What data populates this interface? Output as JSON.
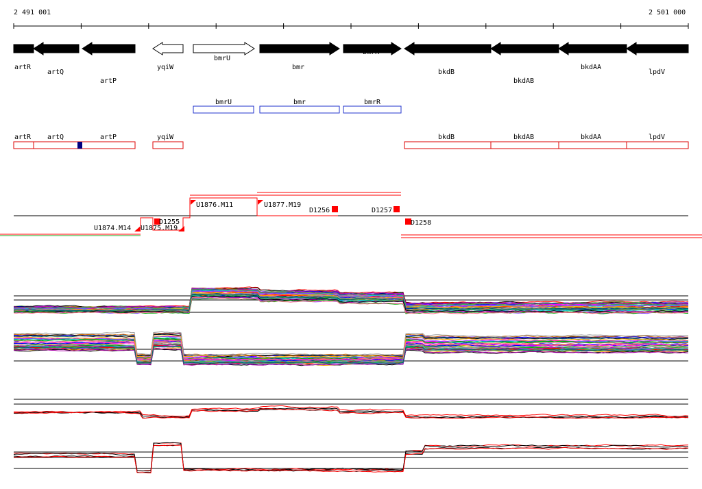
{
  "coordinates": {
    "start": "2 491 001",
    "end": "2 501 000"
  },
  "genes": [
    {
      "name": "artR",
      "strand": "-",
      "filled": true
    },
    {
      "name": "artQ",
      "strand": "-",
      "filled": true
    },
    {
      "name": "artP",
      "strand": "-",
      "filled": true
    },
    {
      "name": "yqiW",
      "strand": "-",
      "filled": false
    },
    {
      "name": "bmrU",
      "strand": "+",
      "filled": false
    },
    {
      "name": "bmr",
      "strand": "+",
      "filled": true
    },
    {
      "name": "bmrR",
      "strand": "+",
      "filled": true
    },
    {
      "name": "bkdB",
      "strand": "-",
      "filled": true
    },
    {
      "name": "bkdAB",
      "strand": "-",
      "filled": true
    },
    {
      "name": "bkdAA",
      "strand": "-",
      "filled": true
    },
    {
      "name": "lpdV",
      "strand": "-",
      "filled": true
    }
  ],
  "blue_track": [
    "bmrU",
    "bmr",
    "bmrR"
  ],
  "red_track": [
    "artR",
    "artQ",
    "artP",
    "yqiW",
    "bkdB",
    "bkdAB",
    "bkdAA",
    "lpdV"
  ],
  "features": [
    {
      "label": "U1874.M14",
      "type": "promoter"
    },
    {
      "label": "U1875.M19",
      "type": "promoter"
    },
    {
      "label": "D1255",
      "type": "terminator"
    },
    {
      "label": "U1876.M11",
      "type": "promoter"
    },
    {
      "label": "U1877.M19",
      "type": "promoter"
    },
    {
      "label": "D1256",
      "type": "terminator"
    },
    {
      "label": "D1257",
      "type": "terminator"
    },
    {
      "label": "D1258",
      "type": "terminator"
    }
  ],
  "colors": {
    "gene_fill": "#000000",
    "blue_box": "#2233cc",
    "red_box": "#dd0000",
    "marker_dark": "#000080",
    "feature_red": "#ff0000",
    "line_green": "#22aa22"
  },
  "profile_tracks": [
    {
      "name": "upper-strand profiles",
      "kind": "multi"
    },
    {
      "name": "lower-strand profiles",
      "kind": "multi"
    },
    {
      "name": "upper-strand averages",
      "kind": "pair"
    },
    {
      "name": "lower-strand averages",
      "kind": "pair"
    }
  ]
}
